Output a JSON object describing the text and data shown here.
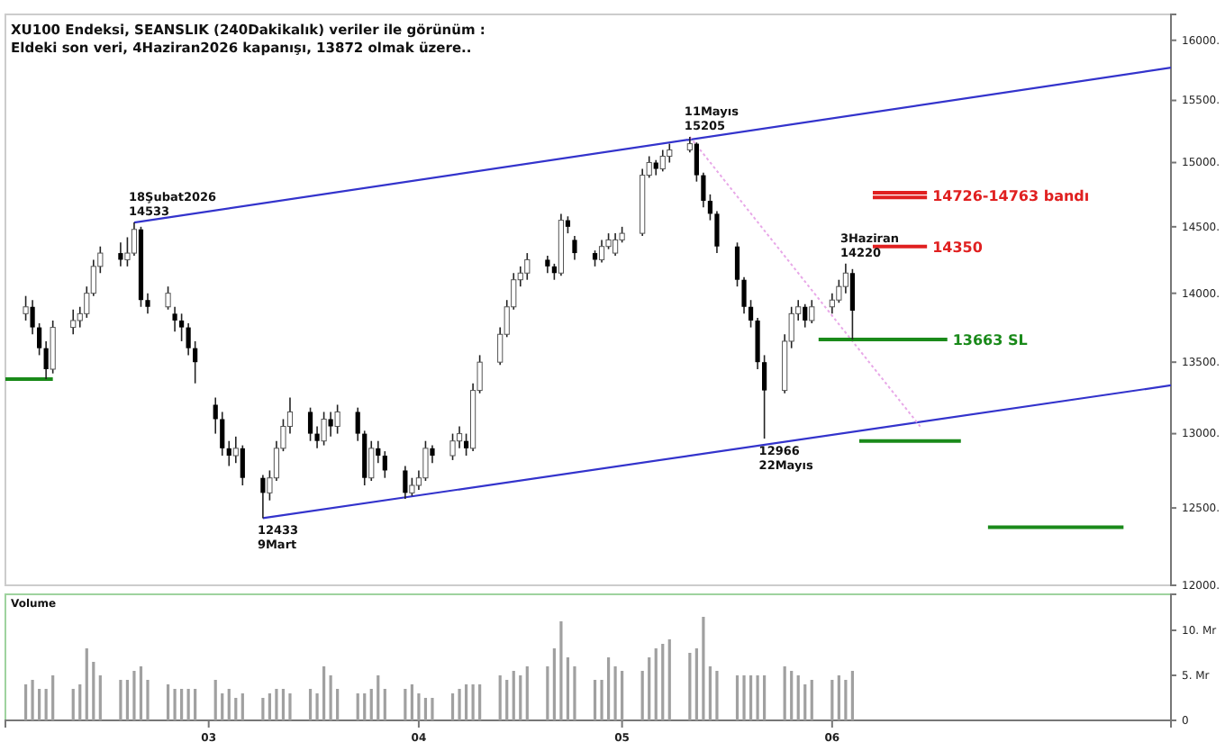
{
  "chart_data": [
    {
      "type": "candlestick",
      "title": "XU100 Endeksi, SEANSLIK (240Dakikalık) veriler ile görünüm :",
      "subtitle": "Eldeki son veri, 4Haziran2026 kapanışı, 13872 olmak üzere..",
      "log": true,
      "tick_labels": "y",
      "x": [
        "2026-02-02",
        "2026-02-03",
        "2026-02-04",
        "2026-02-05",
        "2026-02-06",
        "2026-02-09",
        "2026-02-10",
        "2026-02-11",
        "2026-02-12",
        "2026-02-13",
        "2026-02-16",
        "2026-02-17",
        "2026-02-18",
        "2026-02-19",
        "2026-02-20",
        "2026-02-23",
        "2026-02-24",
        "2026-02-25",
        "2026-02-26",
        "2026-02-27",
        "2026-03-02",
        "2026-03-03",
        "2026-03-04",
        "2026-03-05",
        "2026-03-06",
        "2026-03-09",
        "2026-03-10",
        "2026-03-11",
        "2026-03-12",
        "2026-03-13",
        "2026-03-16",
        "2026-03-17",
        "2026-03-18",
        "2026-03-19",
        "2026-03-20",
        "2026-03-23",
        "2026-03-24",
        "2026-03-25",
        "2026-03-26",
        "2026-03-27",
        "2026-03-30",
        "2026-03-31",
        "2026-04-01",
        "2026-04-02",
        "2026-04-03",
        "2026-04-06",
        "2026-04-07",
        "2026-04-08",
        "2026-04-09",
        "2026-04-10",
        "2026-04-13",
        "2026-04-14",
        "2026-04-15",
        "2026-04-16",
        "2026-04-17",
        "2026-04-20",
        "2026-04-21",
        "2026-04-22",
        "2026-04-23",
        "2026-04-24",
        "2026-04-27",
        "2026-04-28",
        "2026-04-29",
        "2026-04-30",
        "2026-05-01",
        "2026-05-04",
        "2026-05-05",
        "2026-05-06",
        "2026-05-07",
        "2026-05-08",
        "2026-05-11",
        "2026-05-12",
        "2026-05-13",
        "2026-05-14",
        "2026-05-15",
        "2026-05-18",
        "2026-05-19",
        "2026-05-20",
        "2026-05-21",
        "2026-05-22",
        "2026-05-25",
        "2026-05-26",
        "2026-05-27",
        "2026-05-28",
        "2026-05-29",
        "2026-06-01",
        "2026-06-02",
        "2026-06-03",
        "2026-06-04"
      ],
      "ohlc": [
        [
          13850,
          13980,
          13800,
          13900
        ],
        [
          13900,
          13950,
          13700,
          13750
        ],
        [
          13750,
          13780,
          13550,
          13600
        ],
        [
          13600,
          13650,
          13380,
          13450
        ],
        [
          13450,
          13800,
          13420,
          13750
        ],
        [
          13750,
          13880,
          13700,
          13800
        ],
        [
          13800,
          13900,
          13750,
          13850
        ],
        [
          13850,
          14050,
          13820,
          14000
        ],
        [
          14000,
          14250,
          13980,
          14200
        ],
        [
          14200,
          14350,
          14150,
          14300
        ],
        [
          14300,
          14380,
          14200,
          14250
        ],
        [
          14250,
          14420,
          14200,
          14300
        ],
        [
          14300,
          14533,
          14280,
          14480
        ],
        [
          14480,
          14500,
          13900,
          13950
        ],
        [
          13950,
          14000,
          13850,
          13900
        ],
        [
          13900,
          14050,
          13880,
          14000
        ],
        [
          13850,
          13900,
          13720,
          13800
        ],
        [
          13800,
          13850,
          13650,
          13750
        ],
        [
          13750,
          13780,
          13550,
          13600
        ],
        [
          13600,
          13650,
          13350,
          13500
        ],
        [
          13200,
          13250,
          13000,
          13100
        ],
        [
          13100,
          13150,
          12850,
          12900
        ],
        [
          12900,
          12950,
          12780,
          12850
        ],
        [
          12850,
          12980,
          12800,
          12900
        ],
        [
          12900,
          12920,
          12650,
          12700
        ],
        [
          12700,
          12720,
          12433,
          12600
        ],
        [
          12600,
          12750,
          12550,
          12700
        ],
        [
          12700,
          12950,
          12680,
          12900
        ],
        [
          12900,
          13100,
          12880,
          13050
        ],
        [
          13050,
          13250,
          13000,
          13150
        ],
        [
          13150,
          13180,
          12950,
          13000
        ],
        [
          13000,
          13050,
          12900,
          12950
        ],
        [
          12950,
          13150,
          12920,
          13100
        ],
        [
          13100,
          13150,
          12980,
          13050
        ],
        [
          13050,
          13200,
          13000,
          13150
        ],
        [
          13150,
          13180,
          12950,
          13000
        ],
        [
          13000,
          13020,
          12650,
          12700
        ],
        [
          12700,
          12950,
          12680,
          12900
        ],
        [
          12900,
          12950,
          12800,
          12850
        ],
        [
          12850,
          12880,
          12700,
          12750
        ],
        [
          12750,
          12780,
          12560,
          12600
        ],
        [
          12600,
          12700,
          12580,
          12650
        ],
        [
          12650,
          12750,
          12620,
          12700
        ],
        [
          12700,
          12950,
          12680,
          12900
        ],
        [
          12900,
          12920,
          12800,
          12850
        ],
        [
          12850,
          13000,
          12820,
          12950
        ],
        [
          12950,
          13050,
          12900,
          13000
        ],
        [
          12950,
          13000,
          12850,
          12900
        ],
        [
          12900,
          13350,
          12880,
          13300
        ],
        [
          13300,
          13550,
          13280,
          13500
        ],
        [
          13500,
          13750,
          13480,
          13700
        ],
        [
          13700,
          13950,
          13680,
          13900
        ],
        [
          13900,
          14150,
          13880,
          14100
        ],
        [
          14100,
          14200,
          14050,
          14150
        ],
        [
          14150,
          14300,
          14100,
          14250
        ],
        [
          14250,
          14280,
          14150,
          14200
        ],
        [
          14200,
          14220,
          14100,
          14150
        ],
        [
          14150,
          14600,
          14130,
          14550
        ],
        [
          14550,
          14580,
          14450,
          14500
        ],
        [
          14400,
          14430,
          14250,
          14300
        ],
        [
          14300,
          14320,
          14200,
          14250
        ],
        [
          14250,
          14400,
          14230,
          14350
        ],
        [
          14350,
          14450,
          14330,
          14400
        ],
        [
          14300,
          14450,
          14280,
          14400
        ],
        [
          14400,
          14500,
          14380,
          14450
        ],
        [
          14450,
          14950,
          14430,
          14900
        ],
        [
          14900,
          15050,
          14880,
          15000
        ],
        [
          15000,
          15020,
          14900,
          14950
        ],
        [
          14950,
          15100,
          14930,
          15050
        ],
        [
          15050,
          15150,
          15000,
          15100
        ],
        [
          15100,
          15205,
          15080,
          15150
        ],
        [
          15150,
          15160,
          14850,
          14900
        ],
        [
          14900,
          14920,
          14650,
          14700
        ],
        [
          14700,
          14750,
          14550,
          14600
        ],
        [
          14600,
          14620,
          14300,
          14350
        ],
        [
          14350,
          14380,
          14050,
          14100
        ],
        [
          14100,
          14120,
          13850,
          13900
        ],
        [
          13900,
          13950,
          13750,
          13800
        ],
        [
          13800,
          13820,
          13450,
          13500
        ],
        [
          13500,
          13550,
          12966,
          13300
        ],
        [
          13300,
          13700,
          13280,
          13650
        ],
        [
          13650,
          13900,
          13600,
          13850
        ],
        [
          13850,
          13950,
          13800,
          13900
        ],
        [
          13900,
          13920,
          13750,
          13800
        ],
        [
          13800,
          13950,
          13780,
          13900
        ],
        [
          13900,
          14000,
          13850,
          13950
        ],
        [
          13950,
          14100,
          13930,
          14050
        ],
        [
          14050,
          14220,
          14000,
          14150
        ],
        [
          14150,
          14180,
          13663,
          13872
        ]
      ],
      "xlim": [
        "2026-01-30",
        "2026-07-21"
      ],
      "ylim": [
        12000,
        16220
      ],
      "yticks": [
        {
          "value": 12000,
          "label": "12000."
        },
        {
          "value": 12500,
          "label": "12500."
        },
        {
          "value": 13000,
          "label": "13000."
        },
        {
          "value": 13500,
          "label": "13500."
        },
        {
          "value": 14000,
          "label": "14000."
        },
        {
          "value": 14500,
          "label": "14500."
        },
        {
          "value": 15000,
          "label": "15000."
        },
        {
          "value": 15500,
          "label": "15500."
        },
        {
          "value": 16000,
          "label": "16000."
        }
      ],
      "series": [
        {
          "type": "line",
          "color": "#3333cc",
          "x": [
            "2026-02-18",
            "2026-07-21"
          ],
          "values": [
            14533,
            15770
          ]
        },
        {
          "type": "line",
          "color": "#3333cc",
          "x": [
            "2026-03-09",
            "2026-07-21"
          ],
          "values": [
            12433,
            13336
          ]
        },
        {
          "type": "line",
          "color": "#e8a8e8",
          "line_style": "dotted",
          "x": [
            "2026-05-11",
            "2026-06-14"
          ],
          "values": [
            15205,
            13050
          ]
        },
        {
          "type": "line",
          "color": "#e02020",
          "x": [
            "2026-06-07",
            "2026-06-15"
          ],
          "values": [
            14763,
            14763
          ]
        },
        {
          "type": "line",
          "color": "#e02020",
          "x": [
            "2026-06-07",
            "2026-06-15"
          ],
          "values": [
            14726,
            14726
          ]
        },
        {
          "type": "line",
          "color": "#e02020",
          "x": [
            "2026-06-07",
            "2026-06-15"
          ],
          "values": [
            14350,
            14350
          ]
        },
        {
          "type": "line",
          "color": "#1a8a1a",
          "x": [
            "2026-05-30",
            "2026-06-18"
          ],
          "values": [
            13663,
            13663
          ]
        },
        {
          "type": "line",
          "color": "#1a8a1a",
          "x": [
            "2026-01-30",
            "2026-02-06"
          ],
          "values": [
            13380,
            13380
          ]
        },
        {
          "type": "line",
          "color": "#1a8a1a",
          "x": [
            "2026-06-05",
            "2026-06-20"
          ],
          "values": [
            12950,
            12950
          ]
        },
        {
          "type": "line",
          "color": "#1a8a1a",
          "x": [
            "2026-06-24",
            "2026-07-14"
          ],
          "values": [
            12373,
            12373
          ]
        }
      ],
      "annotations": [
        {
          "text": "18Şubat2026\n14533",
          "x": "2026-02-18",
          "y": 14533
        },
        {
          "text": "11Mayıs\n15205",
          "x": "2026-05-11",
          "y": 15205
        },
        {
          "text": "12433\n9Mart",
          "x": "2026-03-09",
          "y": 12433
        },
        {
          "text": "12966\n22Mayıs",
          "x": "2026-05-22",
          "y": 12966
        },
        {
          "text": "3Haziran\n14220",
          "x": "2026-06-03",
          "y": 14220
        },
        {
          "text": "14726-14763 bandı",
          "x": "2026-06-15",
          "y": 14745
        },
        {
          "text": "14350",
          "x": "2026-06-15",
          "y": 14350
        },
        {
          "text": "13663 SL",
          "x": "2026-06-18",
          "y": 13663
        }
      ]
    },
    {
      "type": "bar",
      "title": "Volume",
      "color": "#a0a0a0",
      "x": [
        "2026-02-02",
        "2026-02-03",
        "2026-02-04",
        "2026-02-05",
        "2026-02-06",
        "2026-02-09",
        "2026-02-10",
        "2026-02-11",
        "2026-02-12",
        "2026-02-13",
        "2026-02-16",
        "2026-02-17",
        "2026-02-18",
        "2026-02-19",
        "2026-02-20",
        "2026-02-23",
        "2026-02-24",
        "2026-02-25",
        "2026-02-26",
        "2026-02-27",
        "2026-03-02",
        "2026-03-03",
        "2026-03-04",
        "2026-03-05",
        "2026-03-06",
        "2026-03-09",
        "2026-03-10",
        "2026-03-11",
        "2026-03-12",
        "2026-03-13",
        "2026-03-16",
        "2026-03-17",
        "2026-03-18",
        "2026-03-19",
        "2026-03-20",
        "2026-03-23",
        "2026-03-24",
        "2026-03-25",
        "2026-03-26",
        "2026-03-27",
        "2026-03-30",
        "2026-03-31",
        "2026-04-01",
        "2026-04-02",
        "2026-04-03",
        "2026-04-06",
        "2026-04-07",
        "2026-04-08",
        "2026-04-09",
        "2026-04-10",
        "2026-04-13",
        "2026-04-14",
        "2026-04-15",
        "2026-04-16",
        "2026-04-17",
        "2026-04-20",
        "2026-04-21",
        "2026-04-22",
        "2026-04-23",
        "2026-04-24",
        "2026-04-27",
        "2026-04-28",
        "2026-04-29",
        "2026-04-30",
        "2026-05-01",
        "2026-05-04",
        "2026-05-05",
        "2026-05-06",
        "2026-05-07",
        "2026-05-08",
        "2026-05-11",
        "2026-05-12",
        "2026-05-13",
        "2026-05-14",
        "2026-05-15",
        "2026-05-18",
        "2026-05-19",
        "2026-05-20",
        "2026-05-21",
        "2026-05-22",
        "2026-05-25",
        "2026-05-26",
        "2026-05-27",
        "2026-05-28",
        "2026-05-29",
        "2026-06-01",
        "2026-06-02",
        "2026-06-03",
        "2026-06-04"
      ],
      "values": [
        4,
        4.5,
        3.5,
        3.5,
        5,
        3.5,
        4,
        8,
        6.5,
        5,
        4.5,
        4.5,
        5.5,
        6,
        4.5,
        4,
        3.5,
        3.5,
        3.5,
        3.5,
        4.5,
        3,
        3.5,
        2.5,
        3,
        2.5,
        3,
        3.5,
        3.5,
        3,
        3.5,
        3,
        6,
        5,
        3.5,
        3,
        3,
        3.5,
        5,
        3.5,
        3.5,
        4,
        3,
        2.5,
        2.5,
        3,
        3.5,
        4,
        4,
        4,
        5,
        4.5,
        5.5,
        5,
        6,
        6,
        8,
        11,
        7,
        6,
        4.5,
        4.5,
        7,
        6,
        5.5,
        5.5,
        7,
        8,
        8.5,
        9,
        7.5,
        8,
        11.5,
        6,
        5.5,
        5,
        5,
        5,
        5,
        5,
        6,
        5.5,
        5,
        4,
        4.5,
        4.5,
        5,
        4.5,
        5.5
      ],
      "xlim": [
        "2026-01-30",
        "2026-07-21"
      ],
      "ylim": [
        0,
        14
      ],
      "xticks": [
        {
          "value": "2026-03-01",
          "label": "03"
        },
        {
          "value": "2026-04-01",
          "label": "04"
        },
        {
          "value": "2026-05-01",
          "label": "05"
        },
        {
          "value": "2026-06-01",
          "label": "06"
        }
      ],
      "yticks": [
        0,
        {
          "value": 5,
          "label": "5. Mr"
        },
        {
          "value": 10,
          "label": "10. Mr"
        }
      ]
    }
  ]
}
